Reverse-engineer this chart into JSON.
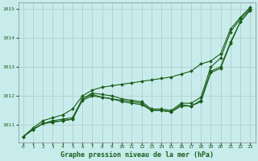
{
  "title": "Graphe pression niveau de la mer (hPa)",
  "bg_color": "#c8ecec",
  "grid_color": "#b0c8c8",
  "line_color": "#1a5e1a",
  "marker_color": "#1a5e1a",
  "xlim": [
    -0.5,
    23.5
  ],
  "ylim": [
    1010.4,
    1015.2
  ],
  "yticks": [
    1011,
    1012,
    1013,
    1014,
    1015
  ],
  "xticks": [
    0,
    1,
    2,
    3,
    4,
    5,
    6,
    7,
    8,
    9,
    10,
    11,
    12,
    13,
    14,
    15,
    16,
    17,
    18,
    19,
    20,
    21,
    22,
    23
  ],
  "series": [
    [
      1010.6,
      1010.85,
      1011.05,
      1011.1,
      1011.15,
      1011.2,
      1011.85,
      1012.0,
      1011.95,
      1011.9,
      1011.8,
      1011.75,
      1011.7,
      1011.5,
      1011.5,
      1011.45,
      1011.65,
      1011.65,
      1011.8,
      1012.8,
      1012.95,
      1013.8,
      1014.55,
      1014.95
    ],
    [
      1010.6,
      1010.85,
      1011.05,
      1011.1,
      1011.15,
      1011.2,
      1011.9,
      1012.05,
      1011.95,
      1011.9,
      1011.85,
      1011.8,
      1011.75,
      1011.5,
      1011.5,
      1011.45,
      1011.7,
      1011.65,
      1011.85,
      1012.85,
      1013.0,
      1013.85,
      1014.55,
      1014.95
    ],
    [
      1010.6,
      1010.85,
      1011.05,
      1011.15,
      1011.2,
      1011.25,
      1011.9,
      1012.1,
      1012.05,
      1012.0,
      1011.9,
      1011.85,
      1011.8,
      1011.55,
      1011.55,
      1011.5,
      1011.75,
      1011.75,
      1011.95,
      1013.0,
      1013.3,
      1014.2,
      1014.65,
      1015.0
    ],
    [
      1010.6,
      1010.9,
      1011.15,
      1011.25,
      1011.35,
      1011.55,
      1012.0,
      1012.2,
      1012.3,
      1012.35,
      1012.4,
      1012.45,
      1012.5,
      1012.55,
      1012.6,
      1012.65,
      1012.75,
      1012.85,
      1013.1,
      1013.2,
      1013.45,
      1014.3,
      1014.7,
      1015.05
    ]
  ]
}
